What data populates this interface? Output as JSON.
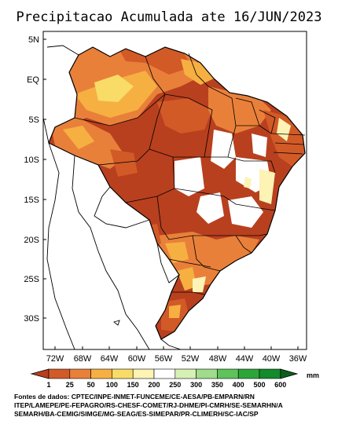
{
  "title": "Precipitacao Acumulada ate 16/JUN/2023",
  "lat_ticks": [
    "5N",
    "EQ",
    "5S",
    "10S",
    "15S",
    "20S",
    "25S",
    "30S"
  ],
  "lon_ticks": [
    "72W",
    "68W",
    "64W",
    "60W",
    "56W",
    "52W",
    "48W",
    "44W",
    "40W",
    "36W"
  ],
  "legend": {
    "unit": "mm",
    "values": [
      "1",
      "25",
      "50",
      "100",
      "150",
      "200",
      "250",
      "300",
      "350",
      "400",
      "500",
      "600"
    ],
    "colors": [
      "#b8401f",
      "#d25a27",
      "#e9803a",
      "#f6b042",
      "#f9dc68",
      "#fcf3b4",
      "#d7f0b4",
      "#9fdc8b",
      "#5dc35a",
      "#2da53a",
      "#138a2b",
      "#0b5f1c"
    ]
  },
  "sources": [
    "Fontes de dados: CPTEC/INPE-INMET-FUNCEME/CE-AESA/PB-EMPARN/RN",
    "ITEP/LAMEPE/PE-FEPAGRO/RS-CHESF-COMET/RJ-DHME/PI-CMRH/SE-SEMARHN/A",
    "SEMARH/BA-CEMIG/SIMGE/MG-SEAG/ES-SIMEPAR/PR-CLIMERH/SC-IAC/SP"
  ]
}
